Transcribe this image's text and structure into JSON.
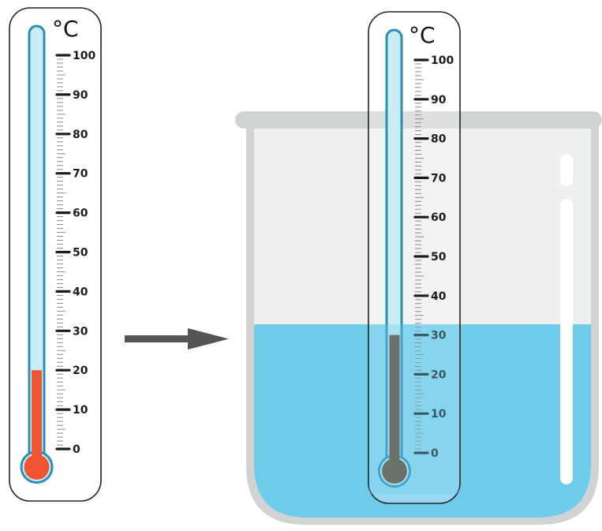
{
  "unit": "°C",
  "scale": {
    "min": 0,
    "max": 100,
    "major_step": 10,
    "minor_step": 1
  },
  "colors": {
    "tube_fill": "#c9ecf6",
    "tube_stroke": "#2a8fb8",
    "mercury_left": "#ef5530",
    "mercury_right": "#6b4226",
    "water": "#6ecbea",
    "beaker_glass": "#eef0f0",
    "beaker_rim": "#d0d3d4",
    "arrow": "#555555"
  },
  "thermometers": [
    {
      "id": "before",
      "reading": 20,
      "liquid_color": "#ef5530"
    },
    {
      "id": "after",
      "reading": 30,
      "liquid_color": "#6b4226"
    }
  ],
  "arrow": {
    "direction": "right"
  },
  "beaker": {
    "water_level_fraction": 0.49
  }
}
